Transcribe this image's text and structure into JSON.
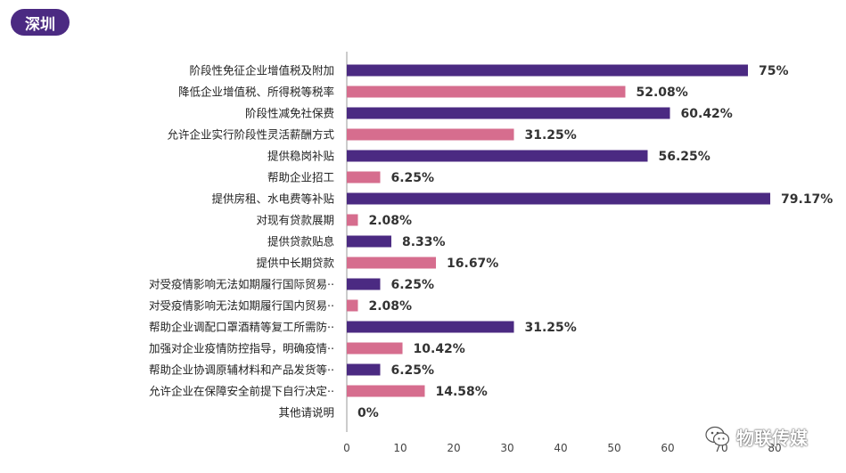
{
  "badge": {
    "label": "深圳"
  },
  "watermark": {
    "text": "物联传媒",
    "icon": "wechat-icon"
  },
  "colors": {
    "purple": "#4b2a82",
    "pink": "#d66d8e",
    "badge": "#4b2a82"
  },
  "chart_data": {
    "type": "bar",
    "orientation": "horizontal",
    "title": "",
    "xlabel": "",
    "ylabel": "",
    "xlim": [
      0,
      80
    ],
    "xticks": [
      0,
      10,
      20,
      30,
      40,
      50,
      60,
      70,
      80
    ],
    "grid": false,
    "legend": "none",
    "categories": [
      "阶段性免征企业增值税及附加",
      "降低企业增值税、所得税等税率",
      "阶段性减免社保费",
      "允许企业实行阶段性灵活薪酬方式",
      "提供稳岗补贴",
      "帮助企业招工",
      "提供房租、水电费等补贴",
      "对现有贷款展期",
      "提供贷款贴息",
      "提供中长期贷款",
      "对受疫情影响无法如期履行国际贸易··",
      "对受疫情影响无法如期履行国内贸易··",
      "帮助企业调配口罩酒精等复工所需防··",
      "加强对企业疫情防控指导，明确疫情··",
      "帮助企业协调原辅材料和产品发货等··",
      "允许企业在保障安全前提下自行决定··",
      "其他请说明"
    ],
    "values": [
      75,
      52.08,
      60.42,
      31.25,
      56.25,
      6.25,
      79.17,
      2.08,
      8.33,
      16.67,
      6.25,
      2.08,
      31.25,
      10.42,
      6.25,
      14.58,
      0
    ],
    "value_labels": [
      "75%",
      "52.08%",
      "60.42%",
      "31.25%",
      "56.25%",
      "6.25%",
      "79.17%",
      "2.08%",
      "8.33%",
      "16.67%",
      "6.25%",
      "2.08%",
      "31.25%",
      "10.42%",
      "6.25%",
      "14.58%",
      "0%"
    ],
    "bar_colors": [
      "purple",
      "pink",
      "purple",
      "pink",
      "purple",
      "pink",
      "purple",
      "pink",
      "purple",
      "pink",
      "purple",
      "pink",
      "purple",
      "pink",
      "purple",
      "pink",
      "purple"
    ]
  }
}
